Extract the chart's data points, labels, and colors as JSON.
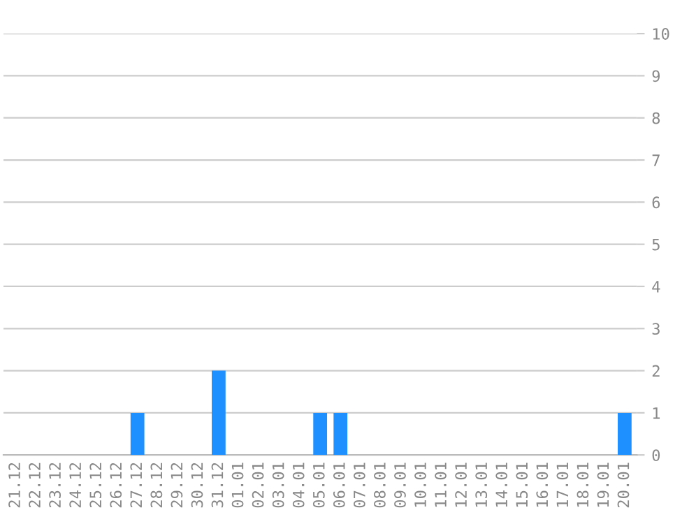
{
  "chart_data": {
    "type": "bar",
    "categories": [
      "21.12",
      "22.12",
      "23.12",
      "24.12",
      "25.12",
      "26.12",
      "27.12",
      "28.12",
      "29.12",
      "30.12",
      "31.12",
      "01.01",
      "02.01",
      "03.01",
      "04.01",
      "05.01",
      "06.01",
      "07.01",
      "08.01",
      "09.01",
      "10.01",
      "11.01",
      "12.01",
      "13.01",
      "14.01",
      "15.01",
      "16.01",
      "17.01",
      "18.01",
      "19.01",
      "20.01"
    ],
    "values": [
      0,
      0,
      0,
      0,
      0,
      0,
      1,
      0,
      0,
      0,
      2,
      0,
      0,
      0,
      0,
      1,
      1,
      0,
      0,
      0,
      0,
      0,
      0,
      0,
      0,
      0,
      0,
      0,
      0,
      0,
      1
    ],
    "color": "#1e90ff",
    "ylim": [
      0,
      10
    ],
    "yticks": [
      0,
      1,
      2,
      3,
      4,
      5,
      6,
      7,
      8,
      9,
      10
    ],
    "grid": "y"
  }
}
